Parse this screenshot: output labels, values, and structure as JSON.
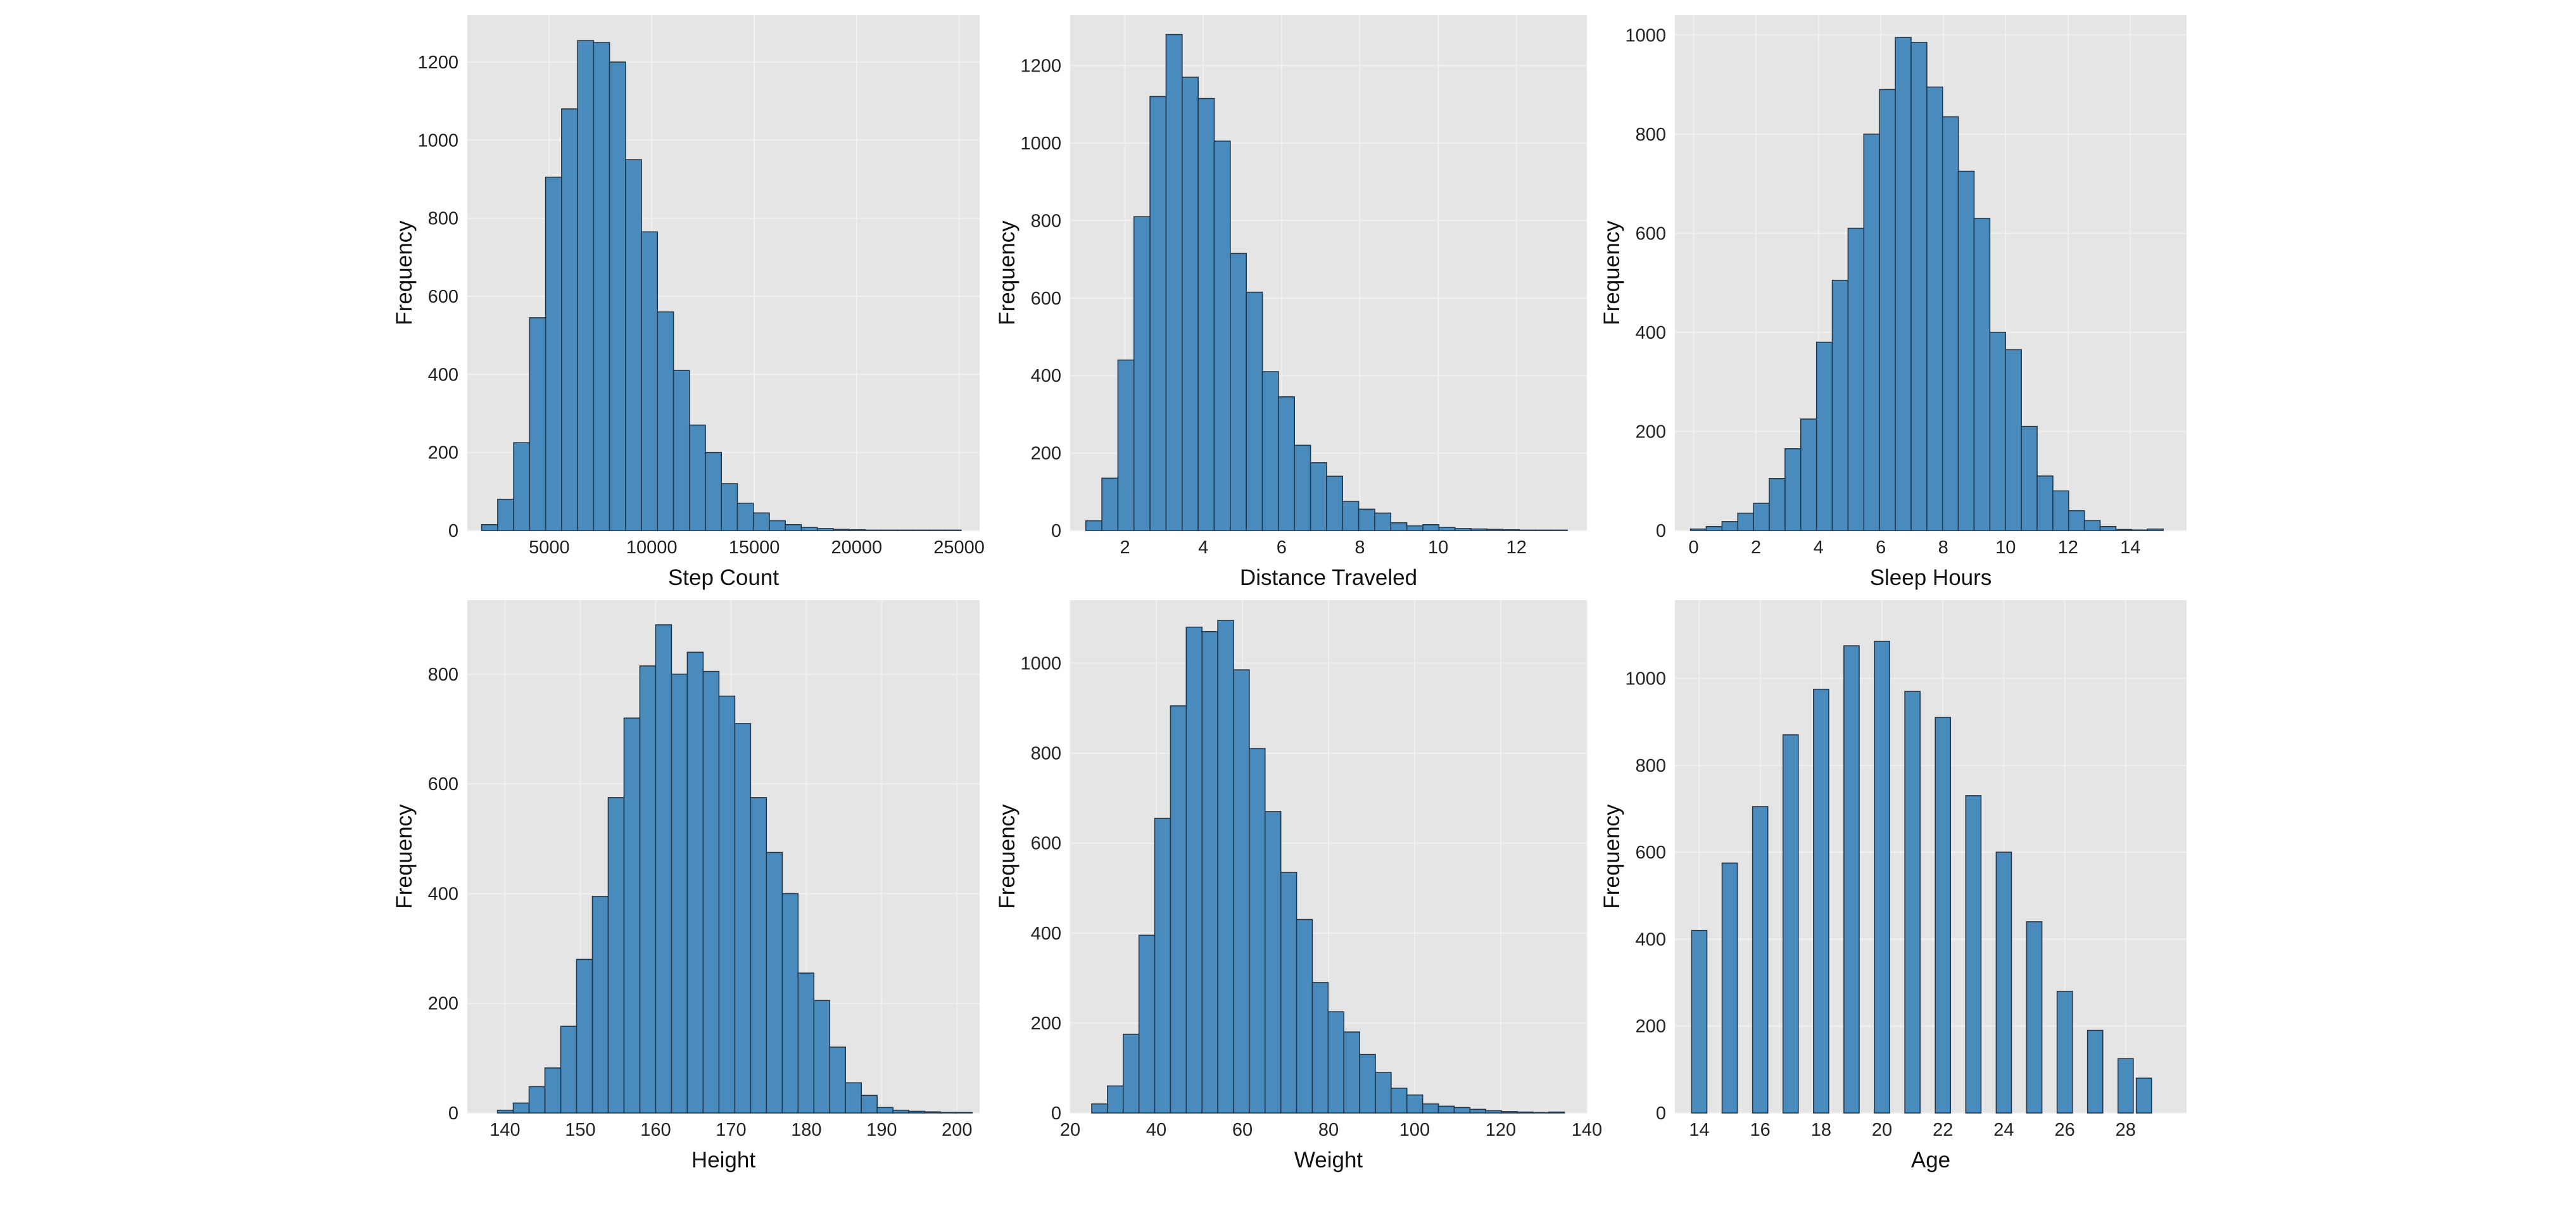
{
  "colors": {
    "bar_fill": "#4a8bbe",
    "bar_edge": "#22384c",
    "plot_background": "#e5e5e5",
    "grid": "#f0f0f0",
    "tick_text": "#222222"
  },
  "chart_data": [
    {
      "type": "bar",
      "subtype": "histogram",
      "xlabel": "Step Count",
      "ylabel": "Frequency",
      "xlim": [
        1000,
        26000
      ],
      "ylim": [
        0,
        1320
      ],
      "xticks": [
        5000,
        10000,
        15000,
        20000,
        25000
      ],
      "yticks": [
        0,
        200,
        400,
        600,
        800,
        1000,
        1200
      ],
      "grid": true,
      "bin_start": 1700,
      "bin_width": 780,
      "values": [
        15,
        80,
        225,
        545,
        905,
        1080,
        1255,
        1250,
        1200,
        950,
        765,
        560,
        410,
        270,
        200,
        120,
        70,
        45,
        25,
        15,
        8,
        5,
        3,
        2,
        1,
        1,
        1,
        1,
        1,
        1
      ]
    },
    {
      "type": "bar",
      "subtype": "histogram",
      "xlabel": "Distance Traveled",
      "ylabel": "Frequency",
      "xlim": [
        0.6,
        13.8
      ],
      "ylim": [
        0,
        1330
      ],
      "xticks": [
        2,
        4,
        6,
        8,
        10,
        12
      ],
      "yticks": [
        0,
        200,
        400,
        600,
        800,
        1000,
        1200
      ],
      "grid": true,
      "bin_start": 1.0,
      "bin_width": 0.41,
      "values": [
        25,
        135,
        440,
        810,
        1120,
        1280,
        1170,
        1115,
        1005,
        715,
        615,
        410,
        345,
        220,
        175,
        140,
        75,
        55,
        45,
        20,
        12,
        15,
        8,
        5,
        4,
        3,
        2,
        1,
        1,
        1
      ]
    },
    {
      "type": "bar",
      "subtype": "histogram",
      "xlabel": "Sleep Hours",
      "ylabel": "Frequency",
      "xlim": [
        -0.6,
        15.8
      ],
      "ylim": [
        0,
        1040
      ],
      "xticks": [
        0,
        2,
        4,
        6,
        8,
        10,
        12,
        14
      ],
      "yticks": [
        0,
        200,
        400,
        600,
        800,
        1000
      ],
      "grid": true,
      "bin_start": -0.1,
      "bin_width": 0.505,
      "values": [
        3,
        8,
        18,
        35,
        55,
        105,
        165,
        225,
        380,
        505,
        610,
        800,
        890,
        995,
        985,
        895,
        835,
        725,
        630,
        400,
        365,
        210,
        110,
        80,
        40,
        20,
        8,
        2,
        1,
        3
      ]
    },
    {
      "type": "bar",
      "subtype": "histogram",
      "xlabel": "Height",
      "ylabel": "Frequency",
      "xlim": [
        135,
        203
      ],
      "ylim": [
        0,
        935
      ],
      "xticks": [
        140,
        150,
        160,
        170,
        180,
        190,
        200
      ],
      "yticks": [
        0,
        200,
        400,
        600,
        800
      ],
      "grid": true,
      "bin_start": 139,
      "bin_width": 2.1,
      "values": [
        5,
        18,
        48,
        82,
        158,
        280,
        395,
        575,
        720,
        815,
        890,
        800,
        840,
        805,
        760,
        710,
        575,
        475,
        400,
        255,
        205,
        120,
        55,
        32,
        10,
        5,
        3,
        2,
        1,
        1
      ]
    },
    {
      "type": "bar",
      "subtype": "histogram",
      "xlabel": "Weight",
      "ylabel": "Frequency",
      "xlim": [
        20,
        140
      ],
      "ylim": [
        0,
        1140
      ],
      "xticks": [
        20,
        40,
        60,
        80,
        100,
        120,
        140
      ],
      "yticks": [
        0,
        200,
        400,
        600,
        800,
        1000
      ],
      "grid": true,
      "bin_start": 25.0,
      "bin_width": 3.66,
      "values": [
        20,
        60,
        175,
        395,
        655,
        905,
        1080,
        1070,
        1095,
        985,
        810,
        670,
        535,
        430,
        290,
        225,
        180,
        130,
        90,
        55,
        40,
        20,
        15,
        12,
        8,
        5,
        3,
        2,
        1,
        2
      ]
    },
    {
      "type": "bar",
      "subtype": "histogram",
      "xlabel": "Age",
      "ylabel": "Frequency",
      "xlim": [
        13.2,
        30.0
      ],
      "ylim": [
        0,
        1180
      ],
      "xticks": [
        14,
        16,
        18,
        20,
        22,
        24,
        26,
        28
      ],
      "yticks": [
        0,
        200,
        400,
        600,
        800,
        1000
      ],
      "grid": true,
      "bin_start": 13.75,
      "bin_width": 0.5,
      "bins": [
        {
          "x": 14,
          "value": 420
        },
        {
          "x": 15,
          "value": 575
        },
        {
          "x": 16,
          "value": 705
        },
        {
          "x": 17,
          "value": 870
        },
        {
          "x": 18,
          "value": 975
        },
        {
          "x": 19,
          "value": 1075
        },
        {
          "x": 20,
          "value": 1085
        },
        {
          "x": 21,
          "value": 970
        },
        {
          "x": 22,
          "value": 910
        },
        {
          "x": 23,
          "value": 730
        },
        {
          "x": 24,
          "value": 600
        },
        {
          "x": 25,
          "value": 440
        },
        {
          "x": 26,
          "value": 280
        },
        {
          "x": 27,
          "value": 190
        },
        {
          "x": 28,
          "value": 125
        },
        {
          "x": 28.6,
          "value": 80
        }
      ]
    }
  ]
}
